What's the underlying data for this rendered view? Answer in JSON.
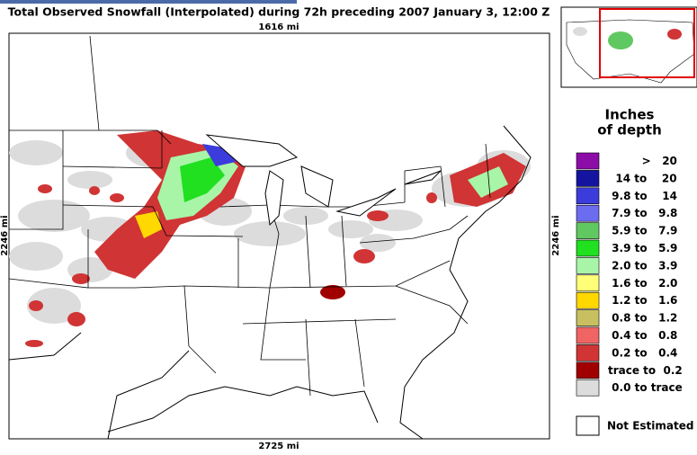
{
  "title": "Total Observed Snowfall (Interpolated) during 72h preceding 2007 January 3, 12:00 Z",
  "map": {
    "top_label": "1616 mi",
    "bottom_label": "2725 mi",
    "left_label": "2246 mi",
    "right_label": "2246 mi"
  },
  "legend": {
    "title_line1": "Inches",
    "title_line2": "of depth",
    "items": [
      {
        "color": "#8c0ca8",
        "label": "         >   20"
      },
      {
        "color": "#1414a0",
        "label": "  14 to    20"
      },
      {
        "color": "#3c3cdc",
        "label": " 9.8 to    14"
      },
      {
        "color": "#6c6cf0",
        "label": " 7.9 to   9.8"
      },
      {
        "color": "#60c860",
        "label": " 5.9 to   7.9"
      },
      {
        "color": "#20e020",
        "label": " 3.9 to   5.9"
      },
      {
        "color": "#a8f5a8",
        "label": " 2.0 to   3.9"
      },
      {
        "color": "#ffff78",
        "label": " 1.6 to   2.0"
      },
      {
        "color": "#ffd800",
        "label": " 1.2 to   1.6"
      },
      {
        "color": "#c8c060",
        "label": " 0.8 to   1.2"
      },
      {
        "color": "#f06464",
        "label": " 0.4 to   0.8"
      },
      {
        "color": "#d03434",
        "label": " 0.2 to   0.4"
      },
      {
        "color": "#a00000",
        "label": "trace to  0.2"
      },
      {
        "color": "#dcdcdc",
        "label": " 0.0 to trace"
      }
    ],
    "not_estimated": "Not Estimated"
  }
}
